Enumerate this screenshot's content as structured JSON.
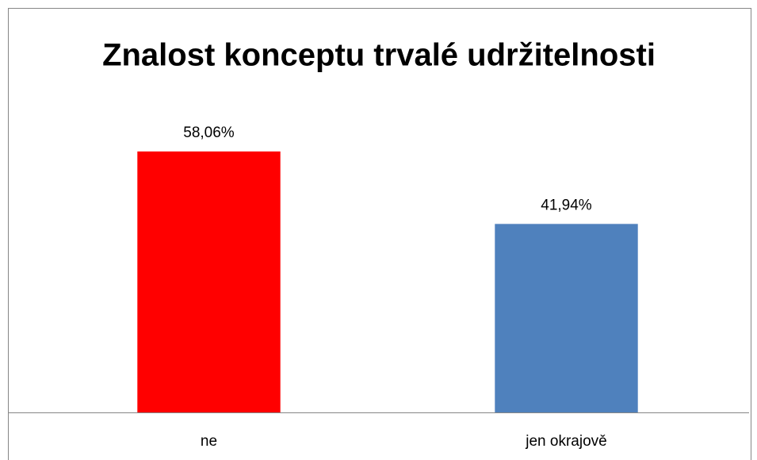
{
  "chart_data": {
    "type": "bar",
    "title": "Znalost konceptu trvalé udržitelnosti",
    "categories": [
      "ne",
      "jen okrajově"
    ],
    "values": [
      58.06,
      41.94
    ],
    "value_labels": [
      "58,06%",
      "41,94%"
    ],
    "colors": [
      "#ff0000",
      "#4f81bd"
    ]
  }
}
